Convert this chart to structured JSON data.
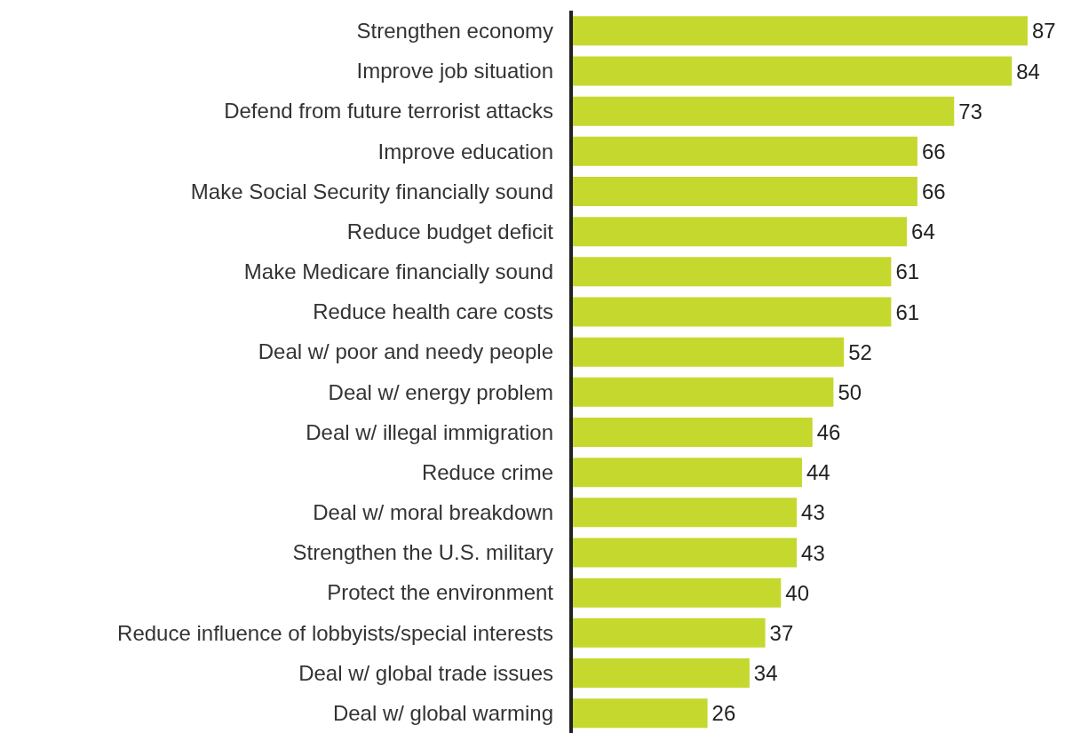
{
  "chart_data": {
    "type": "bar",
    "orientation": "horizontal",
    "categories": [
      "Strengthen economy",
      "Improve job situation",
      "Defend from future terrorist attacks",
      "Improve education",
      "Make Social Security financially sound",
      "Reduce budget deficit",
      "Make Medicare financially sound",
      "Reduce health care costs",
      "Deal w/ poor and needy people",
      "Deal w/ energy problem",
      "Deal w/ illegal immigration",
      "Reduce crime",
      "Deal w/ moral breakdown",
      "Strengthen the U.S. military",
      "Protect the environment",
      "Reduce influence of lobbyists/special interests",
      "Deal w/ global trade issues",
      "Deal w/ global warming"
    ],
    "values": [
      87,
      84,
      73,
      66,
      66,
      64,
      61,
      61,
      52,
      50,
      46,
      44,
      43,
      43,
      40,
      37,
      34,
      26
    ],
    "color": "#c5d82e",
    "data_labels": true
  }
}
